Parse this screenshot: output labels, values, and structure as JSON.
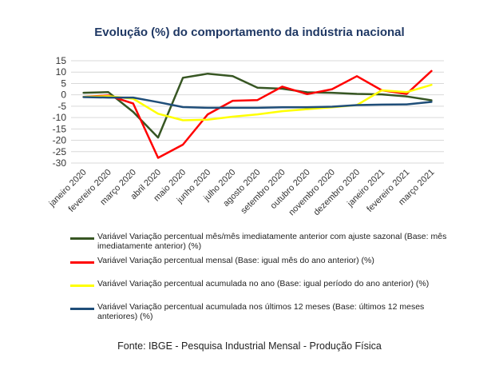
{
  "chart_data": {
    "type": "line",
    "title": "Evolução (%) do comportamento da indústria nacional",
    "categories": [
      "janeiro 2020",
      "fevereiro 2020",
      "março 2020",
      "abril 2020",
      "maio 2020",
      "junho 2020",
      "julho 2020",
      "agosto 2020",
      "setembro 2020",
      "outubro 2020",
      "novembro 2020",
      "dezembro 2020",
      "janeiro 2021",
      "fevereiro 2021",
      "março 2021"
    ],
    "y_ticks": [
      15,
      10,
      5,
      0,
      -5,
      -10,
      -15,
      -20,
      -25,
      -30
    ],
    "ylim": [
      -30,
      15
    ],
    "grid": true,
    "legend_position": "bottom",
    "series": [
      {
        "name": "Variável Variação percentual mês/mês imediatamente anterior com ajuste sazonal (Base: mês imediatamente anterior) (%)",
        "color": "#375623",
        "values": [
          0.9,
          1.2,
          -7.5,
          -18.8,
          7.5,
          9.3,
          8.2,
          3.1,
          2.7,
          1.1,
          0.9,
          0.4,
          0.2,
          -0.7,
          -2.4
        ]
      },
      {
        "name": "Variável Variação percentual mensal (Base: igual mês do ano anterior) (%)",
        "color": "#ff0000",
        "values": [
          -0.9,
          -0.3,
          -3.8,
          -27.7,
          -21.9,
          -8.6,
          -2.6,
          -2.3,
          3.6,
          0.3,
          2.5,
          8.2,
          2.0,
          0.4,
          10.5
        ]
      },
      {
        "name": "Variável Variação percentual acumulada no ano (Base: igual período do ano anterior) (%)",
        "color": "#ffff00",
        "values": [
          -0.9,
          -0.6,
          -1.7,
          -8.3,
          -11.2,
          -10.9,
          -9.6,
          -8.6,
          -7.2,
          -6.3,
          -5.5,
          -4.5,
          2.0,
          1.2,
          4.4
        ]
      },
      {
        "name": "Variável Variação percentual acumulada nos últimos 12 meses (Base: últimos 12 meses anteriores) (%)",
        "color": "#1f4e79",
        "values": [
          -1.0,
          -1.2,
          -1.2,
          -3.2,
          -5.4,
          -5.7,
          -5.7,
          -5.7,
          -5.5,
          -5.5,
          -5.2,
          -4.5,
          -4.3,
          -4.2,
          -3.1
        ]
      }
    ],
    "source": "Fonte: IBGE - Pesquisa Industrial Mensal - Produção Física"
  }
}
